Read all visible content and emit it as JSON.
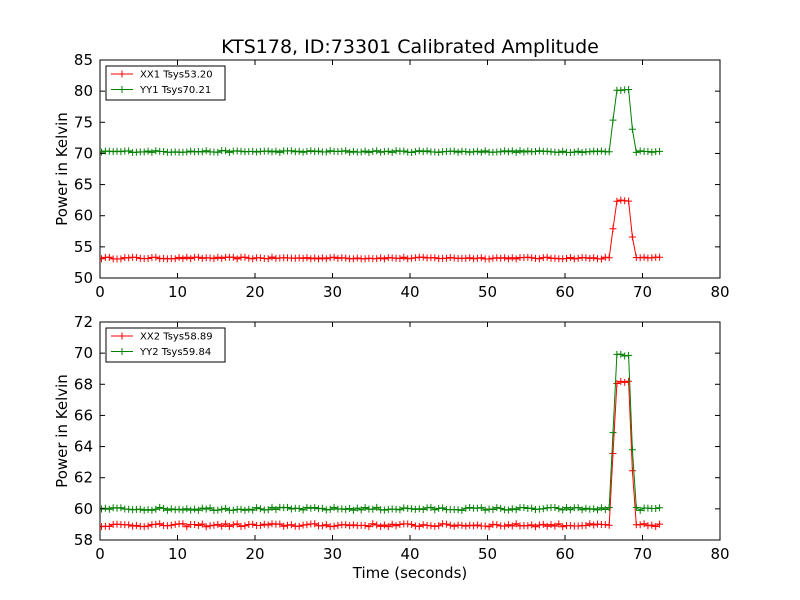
{
  "title": "KTS178, ID:73301 Calibrated Amplitude",
  "xlabel": "Time (seconds)",
  "chart_data": [
    {
      "type": "line",
      "ylabel": "Power in Kelvin",
      "xlim": [
        0,
        80
      ],
      "ylim": [
        50,
        85
      ],
      "xticks": [
        "0",
        "10",
        "20",
        "30",
        "40",
        "50",
        "60",
        "70",
        "80"
      ],
      "yticks": [
        "50",
        "55",
        "60",
        "65",
        "70",
        "75",
        "80",
        "85"
      ],
      "grid": false,
      "legend_position": "top-left",
      "series": [
        {
          "name": "XX1 Tsys53.20",
          "color": "#ff0000",
          "marker": "plus",
          "base": 53.2,
          "jitter": 0.15,
          "step": {
            "t_rise_start": 65.8,
            "t_high_start": 66.6,
            "t_high_end": 68.2,
            "t_fall_end": 69.0,
            "high": 62.4
          },
          "t_start": 0.2,
          "t_end": 72.2,
          "dt": 0.5
        },
        {
          "name": "YY1 Tsys70.21",
          "color": "#008000",
          "marker": "plus",
          "base": 70.3,
          "jitter": 0.15,
          "step": {
            "t_rise_start": 65.8,
            "t_high_start": 66.6,
            "t_high_end": 68.2,
            "t_fall_end": 69.0,
            "high": 80.2
          },
          "t_start": 0.2,
          "t_end": 72.2,
          "dt": 0.5
        }
      ]
    },
    {
      "type": "line",
      "ylabel": "Power in Kelvin",
      "xlim": [
        0,
        80
      ],
      "ylim": [
        58,
        72
      ],
      "xticks": [
        "0",
        "10",
        "20",
        "30",
        "40",
        "50",
        "60",
        "70",
        "80"
      ],
      "yticks": [
        "58",
        "60",
        "62",
        "64",
        "66",
        "68",
        "70",
        "72"
      ],
      "grid": false,
      "legend_position": "top-left",
      "series": [
        {
          "name": "XX2 Tsys58.89",
          "color": "#ff0000",
          "marker": "plus",
          "base": 58.95,
          "jitter": 0.1,
          "step": {
            "t_rise_start": 65.8,
            "t_high_start": 66.6,
            "t_high_end": 68.2,
            "t_fall_end": 69.0,
            "high": 68.1
          },
          "t_start": 0.2,
          "t_end": 72.2,
          "dt": 0.5
        },
        {
          "name": "YY2 Tsys59.84",
          "color": "#008000",
          "marker": "plus",
          "base": 60.0,
          "jitter": 0.1,
          "step": {
            "t_rise_start": 65.8,
            "t_high_start": 66.6,
            "t_high_end": 68.2,
            "t_fall_end": 69.0,
            "high": 69.9
          },
          "t_start": 0.2,
          "t_end": 72.2,
          "dt": 0.5
        }
      ]
    }
  ]
}
